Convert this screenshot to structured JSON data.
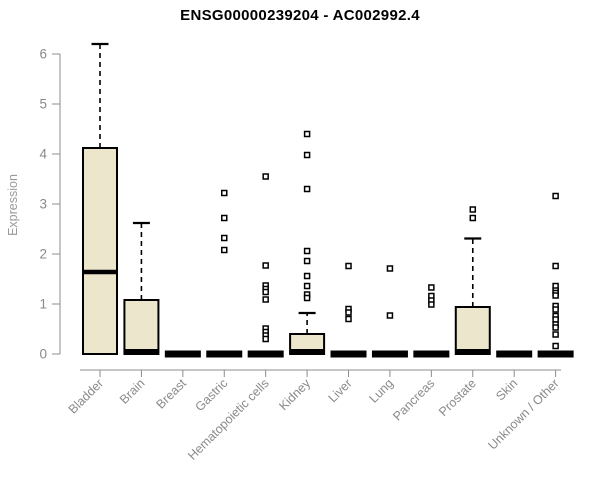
{
  "chart_data": {
    "type": "boxplot",
    "title": "ENSG00000239204 - AC002992.4",
    "ylabel": "Expression",
    "xlabel": "",
    "ylim": [
      0,
      6.3
    ],
    "yticks": [
      0,
      1,
      2,
      3,
      4,
      5,
      6
    ],
    "grid": false,
    "legend": "none",
    "box_fill": "#ECE7CC",
    "box_stroke": "#000000",
    "axis_color": "#8C8C8C",
    "label_color": "#8A8A8A",
    "ylabel_color": "#999999",
    "categories": [
      "Bladder",
      "Brain",
      "Breast",
      "Gastric",
      "Hematopoietic cells",
      "Kidney",
      "Liver",
      "Lung",
      "Pancreas",
      "Prostate",
      "Skin",
      "Unknown / Other"
    ],
    "series": [
      {
        "category": "Bladder",
        "low": 0,
        "q1": 0,
        "median": 1.64,
        "q3": 4.12,
        "high": 6.2,
        "outliers": []
      },
      {
        "category": "Brain",
        "low": 0,
        "q1": 0,
        "median": 0.02,
        "q3": 1.08,
        "high": 2.62,
        "outliers": []
      },
      {
        "category": "Breast",
        "low": 0,
        "q1": 0,
        "median": 0,
        "q3": 0.03,
        "high": 0.03,
        "outliers": []
      },
      {
        "category": "Gastric",
        "low": 0,
        "q1": 0,
        "median": 0,
        "q3": 0.03,
        "high": 0.03,
        "outliers": [
          3.22,
          2.72,
          2.32,
          2.08
        ]
      },
      {
        "category": "Hematopoietic cells",
        "low": 0,
        "q1": 0,
        "median": 0,
        "q3": 0.03,
        "high": 0.03,
        "outliers": [
          3.55,
          1.77,
          1.37,
          1.3,
          1.24,
          1.09,
          0.51,
          0.44,
          0.37,
          0.3
        ]
      },
      {
        "category": "Kidney",
        "low": 0,
        "q1": 0,
        "median": 0.02,
        "q3": 0.4,
        "high": 0.82,
        "outliers": [
          4.4,
          3.98,
          3.3,
          2.06,
          1.86,
          1.56,
          1.36,
          1.19,
          1.12
        ]
      },
      {
        "category": "Liver",
        "low": 0,
        "q1": 0,
        "median": 0,
        "q3": 0.03,
        "high": 0.03,
        "outliers": [
          1.76,
          0.9,
          0.83,
          0.7
        ]
      },
      {
        "category": "Lung",
        "low": 0,
        "q1": 0,
        "median": 0,
        "q3": 0.03,
        "high": 0.03,
        "outliers": [
          1.71,
          0.77
        ]
      },
      {
        "category": "Pancreas",
        "low": 0,
        "q1": 0,
        "median": 0,
        "q3": 0.03,
        "high": 0.03,
        "outliers": [
          1.33,
          1.16,
          1.07,
          0.99
        ]
      },
      {
        "category": "Prostate",
        "low": 0,
        "q1": 0,
        "median": 0.02,
        "q3": 0.94,
        "high": 2.31,
        "outliers": [
          2.89,
          2.72
        ]
      },
      {
        "category": "Skin",
        "low": 0,
        "q1": 0,
        "median": 0,
        "q3": 0.03,
        "high": 0.03,
        "outliers": []
      },
      {
        "category": "Unknown / Other",
        "low": 0,
        "q1": 0,
        "median": 0,
        "q3": 0.03,
        "high": 0.03,
        "outliers": [
          3.16,
          1.76,
          1.36,
          1.27,
          1.22,
          1.17,
          0.96,
          0.89,
          0.76,
          0.69,
          0.59,
          0.53,
          0.39,
          0.16
        ]
      }
    ]
  }
}
